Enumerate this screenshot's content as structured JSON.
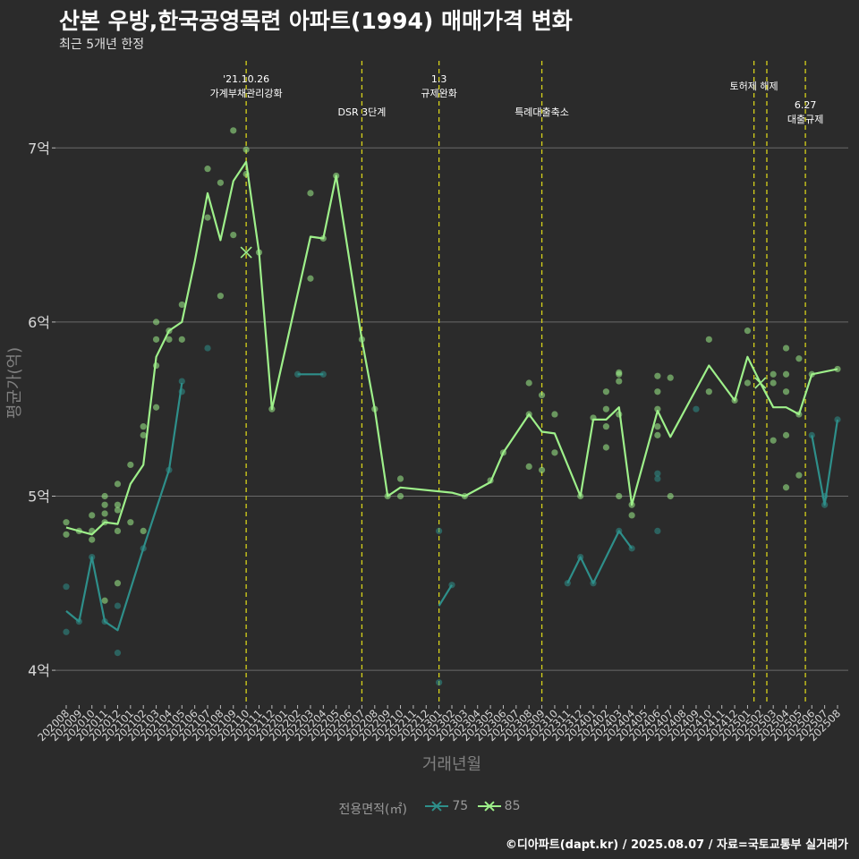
{
  "header": {
    "title": "산본 우방,한국공영목련 아파트(1994) 매매가격 변화",
    "subtitle": "최근 5개년 한정",
    "caption": "©디아파트(dapt.kr) / 2025.08.07 / 자료=국토교통부 실거래가"
  },
  "legend": {
    "title": "전용면적(㎡)",
    "items": [
      {
        "label": "75",
        "color": "#2e8f8a"
      },
      {
        "label": "85",
        "color": "#9ef08a"
      }
    ]
  },
  "chart_data": {
    "type": "line",
    "xlabel": "거래년월",
    "ylabel": "평균가(억)",
    "ylim": [
      3.8,
      7.5
    ],
    "yticks": [
      {
        "v": 4,
        "label": "4억"
      },
      {
        "v": 5,
        "label": "5억"
      },
      {
        "v": 6,
        "label": "6억"
      },
      {
        "v": 7,
        "label": "7억"
      }
    ],
    "categories": [
      "202008",
      "202009",
      "202010",
      "202011",
      "202012",
      "202101",
      "202102",
      "202103",
      "202104",
      "202105",
      "202106",
      "202107",
      "202108",
      "202109",
      "202110",
      "202111",
      "202112",
      "202201",
      "202202",
      "202203",
      "202204",
      "202205",
      "202206",
      "202207",
      "202208",
      "202209",
      "202210",
      "202211",
      "202212",
      "202301",
      "202302",
      "202303",
      "202304",
      "202305",
      "202306",
      "202307",
      "202308",
      "202309",
      "202310",
      "202311",
      "202312",
      "202401",
      "202402",
      "202403",
      "202404",
      "202405",
      "202406",
      "202407",
      "202408",
      "202409",
      "202410",
      "202411",
      "202412",
      "202501",
      "202502",
      "202503",
      "202504",
      "202505",
      "202506",
      "202507",
      "202508"
    ],
    "series": [
      {
        "name": "75",
        "color": "#2e8f8a",
        "segments": [
          [
            [
              0,
              4.34
            ],
            [
              1,
              4.28
            ],
            [
              2,
              4.65
            ],
            [
              3,
              4.28
            ],
            [
              4,
              4.23
            ],
            [
              6,
              4.7
            ],
            [
              8,
              5.15
            ],
            [
              9,
              5.65
            ]
          ],
          [
            [
              18,
              5.7
            ],
            [
              20,
              5.7
            ]
          ],
          [
            [
              29,
              4.37
            ],
            [
              30,
              4.49
            ]
          ],
          [
            [
              39,
              4.5
            ],
            [
              40,
              4.65
            ],
            [
              41,
              4.5
            ],
            [
              43,
              4.8
            ],
            [
              44,
              4.7
            ]
          ],
          [
            [
              58,
              5.35
            ],
            [
              59,
              4.95
            ],
            [
              60,
              5.44
            ]
          ]
        ],
        "points": [
          [
            0,
            4.22
          ],
          [
            0,
            4.48
          ],
          [
            1,
            4.28
          ],
          [
            2,
            4.65
          ],
          [
            3,
            4.28
          ],
          [
            4,
            4.1
          ],
          [
            4,
            4.37
          ],
          [
            6,
            4.7
          ],
          [
            8,
            5.15
          ],
          [
            9,
            5.6
          ],
          [
            9,
            5.66
          ],
          [
            11,
            5.85
          ],
          [
            18,
            5.7
          ],
          [
            20,
            5.7
          ],
          [
            29,
            3.93
          ],
          [
            29,
            4.8
          ],
          [
            30,
            4.49
          ],
          [
            39,
            4.5
          ],
          [
            40,
            4.65
          ],
          [
            41,
            4.5
          ],
          [
            43,
            4.8
          ],
          [
            44,
            4.7
          ],
          [
            46,
            4.8
          ],
          [
            46,
            5.1
          ],
          [
            46,
            5.13
          ],
          [
            49,
            5.5
          ],
          [
            58,
            5.35
          ],
          [
            59,
            4.95
          ],
          [
            59,
            5.0
          ],
          [
            60,
            5.44
          ]
        ]
      },
      {
        "name": "85",
        "color": "#9ef08a",
        "segments": [
          [
            [
              0,
              4.82
            ],
            [
              1,
              4.8
            ],
            [
              2,
              4.78
            ],
            [
              3,
              4.85
            ],
            [
              4,
              4.84
            ],
            [
              5,
              5.07
            ],
            [
              6,
              5.18
            ],
            [
              7,
              5.8
            ],
            [
              8,
              5.95
            ],
            [
              9,
              6.0
            ],
            [
              10,
              6.35
            ],
            [
              11,
              6.74
            ],
            [
              12,
              6.47
            ],
            [
              13,
              6.81
            ],
            [
              14,
              6.92
            ],
            [
              15,
              6.4
            ],
            [
              16,
              5.5
            ],
            [
              19,
              6.49
            ],
            [
              20,
              6.48
            ],
            [
              21,
              6.84
            ],
            [
              23,
              5.9
            ],
            [
              24,
              5.5
            ],
            [
              25,
              5.0
            ],
            [
              26,
              5.05
            ],
            [
              30,
              5.02
            ],
            [
              31,
              5.0
            ],
            [
              33,
              5.08
            ],
            [
              34,
              5.25
            ],
            [
              36,
              5.47
            ],
            [
              37,
              5.37
            ],
            [
              38,
              5.36
            ],
            [
              40,
              5.0
            ],
            [
              41,
              5.44
            ],
            [
              42,
              5.44
            ],
            [
              43,
              5.51
            ],
            [
              44,
              4.95
            ],
            [
              46,
              5.49
            ],
            [
              47,
              5.34
            ],
            [
              50,
              5.75
            ],
            [
              52,
              5.55
            ],
            [
              53,
              5.8
            ],
            [
              54,
              5.65
            ],
            [
              55,
              5.51
            ],
            [
              56,
              5.51
            ],
            [
              57,
              5.47
            ],
            [
              58,
              5.7
            ],
            [
              60,
              5.73
            ]
          ]
        ],
        "points": [
          [
            0,
            4.78
          ],
          [
            0,
            4.85
          ],
          [
            1,
            4.8
          ],
          [
            2,
            4.75
          ],
          [
            2,
            4.8
          ],
          [
            2,
            4.89
          ],
          [
            3,
            4.4
          ],
          [
            3,
            4.85
          ],
          [
            3,
            4.9
          ],
          [
            3,
            4.95
          ],
          [
            3,
            5.0
          ],
          [
            4,
            4.5
          ],
          [
            4,
            4.8
          ],
          [
            4,
            4.92
          ],
          [
            4,
            4.95
          ],
          [
            4,
            5.07
          ],
          [
            5,
            4.85
          ],
          [
            5,
            5.18
          ],
          [
            6,
            4.8
          ],
          [
            6,
            5.35
          ],
          [
            6,
            5.4
          ],
          [
            7,
            5.51
          ],
          [
            7,
            5.75
          ],
          [
            7,
            5.9
          ],
          [
            7,
            6.0
          ],
          [
            8,
            5.9
          ],
          [
            8,
            5.95
          ],
          [
            9,
            5.9
          ],
          [
            9,
            6.1
          ],
          [
            11,
            6.6
          ],
          [
            11,
            6.88
          ],
          [
            12,
            6.15
          ],
          [
            12,
            6.8
          ],
          [
            13,
            6.5
          ],
          [
            13,
            7.1
          ],
          [
            14,
            6.85
          ],
          [
            14,
            6.99
          ],
          [
            15,
            6.4
          ],
          [
            16,
            5.5
          ],
          [
            19,
            6.25
          ],
          [
            19,
            6.74
          ],
          [
            20,
            6.48
          ],
          [
            21,
            6.84
          ],
          [
            23,
            5.9
          ],
          [
            24,
            5.5
          ],
          [
            25,
            5.0
          ],
          [
            26,
            5.0
          ],
          [
            26,
            5.1
          ],
          [
            31,
            5.0
          ],
          [
            33,
            5.09
          ],
          [
            34,
            5.25
          ],
          [
            36,
            5.17
          ],
          [
            36,
            5.47
          ],
          [
            36,
            5.65
          ],
          [
            37,
            5.15
          ],
          [
            37,
            5.58
          ],
          [
            38,
            5.25
          ],
          [
            38,
            5.47
          ],
          [
            40,
            5.0
          ],
          [
            41,
            5.45
          ],
          [
            42,
            5.28
          ],
          [
            42,
            5.4
          ],
          [
            42,
            5.5
          ],
          [
            42,
            5.6
          ],
          [
            43,
            5.0
          ],
          [
            43,
            5.47
          ],
          [
            43,
            5.66
          ],
          [
            43,
            5.7
          ],
          [
            43,
            5.71
          ],
          [
            44,
            4.89
          ],
          [
            44,
            4.95
          ],
          [
            46,
            5.35
          ],
          [
            46,
            5.4
          ],
          [
            46,
            5.5
          ],
          [
            46,
            5.6
          ],
          [
            46,
            5.69
          ],
          [
            47,
            5.0
          ],
          [
            47,
            5.68
          ],
          [
            50,
            5.6
          ],
          [
            50,
            5.9
          ],
          [
            52,
            5.55
          ],
          [
            53,
            5.65
          ],
          [
            53,
            5.95
          ],
          [
            55,
            5.32
          ],
          [
            55,
            5.65
          ],
          [
            55,
            5.7
          ],
          [
            56,
            5.05
          ],
          [
            56,
            5.35
          ],
          [
            56,
            5.6
          ],
          [
            56,
            5.7
          ],
          [
            56,
            5.85
          ],
          [
            57,
            5.12
          ],
          [
            57,
            5.47
          ],
          [
            57,
            5.79
          ],
          [
            58,
            5.7
          ],
          [
            60,
            5.73
          ]
        ]
      }
    ],
    "markers": [
      {
        "series": "85",
        "x": 14,
        "y": 6.4
      },
      {
        "series": "85",
        "x": 54,
        "y": 5.65
      }
    ],
    "events": [
      {
        "x": 14,
        "lines": [
          "'21.10.26",
          "가계부채관리강화"
        ],
        "level": 0
      },
      {
        "x": 23,
        "lines": [
          "DSR 3단계"
        ],
        "level": 2
      },
      {
        "x": 29,
        "lines": [
          "1.3",
          "규제완화"
        ],
        "level": 0
      },
      {
        "x": 37,
        "lines": [
          "특례대출축소"
        ],
        "level": 2
      },
      {
        "x": 53.5,
        "lines": [
          "토허제 해제"
        ],
        "level": 1
      },
      {
        "x": 54.5,
        "lines": [],
        "level": 1
      },
      {
        "x": 57.5,
        "lines": [
          "6.27",
          "대출규제"
        ],
        "level": 3
      }
    ]
  }
}
